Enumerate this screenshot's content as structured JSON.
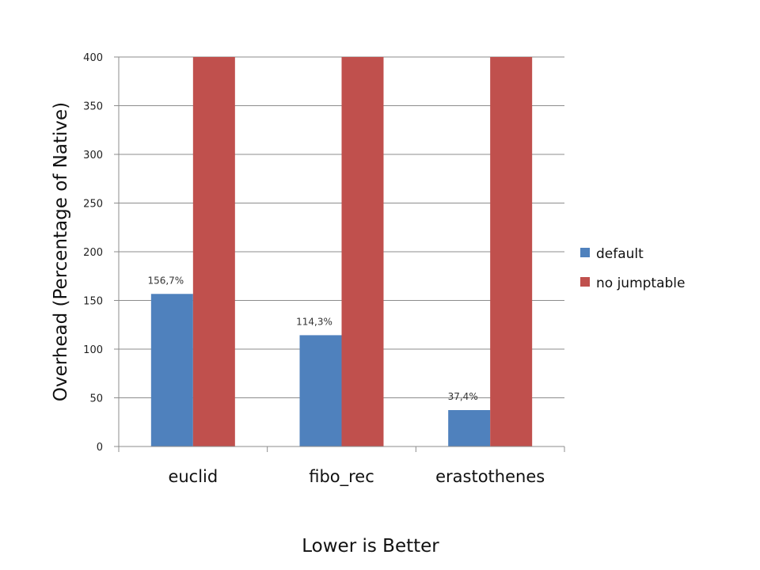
{
  "chart_data": {
    "type": "bar",
    "categories": [
      "euclid",
      "fibo_rec",
      "erastothenes"
    ],
    "series": [
      {
        "name": "default",
        "color": "#4F81BD",
        "values": [
          156.7,
          114.3,
          37.4
        ],
        "labels": [
          "156,7%",
          "114,3%",
          "37,4%"
        ]
      },
      {
        "name": "no jumptable",
        "color": "#C0504D",
        "values": [
          400,
          400,
          400
        ]
      }
    ],
    "ylabel": "Overhead (Percentage of Native)",
    "xlabel": "Lower is Better",
    "ylim": [
      0,
      400
    ],
    "yticks": [
      0,
      50,
      100,
      150,
      200,
      250,
      300,
      350,
      400
    ],
    "grid": true,
    "legend": "right"
  }
}
